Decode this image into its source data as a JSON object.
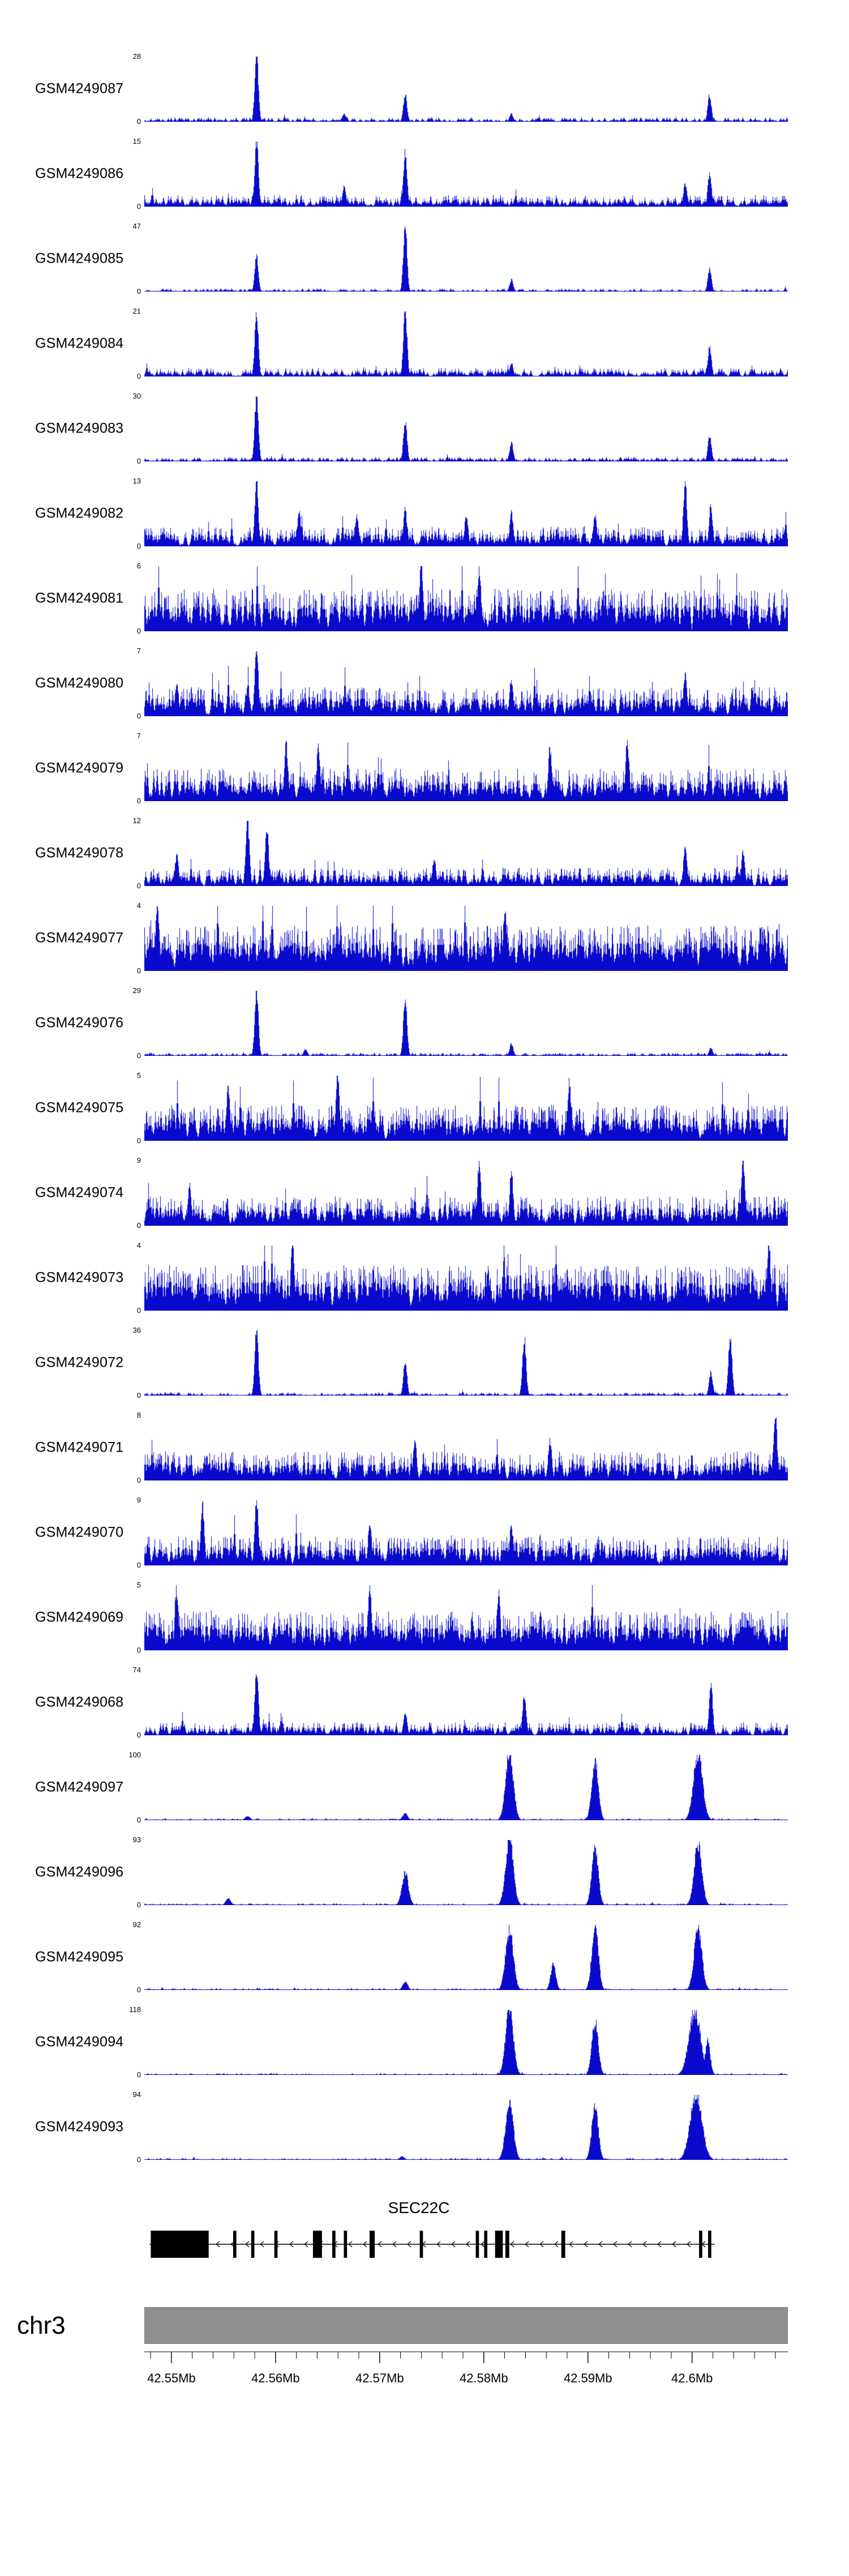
{
  "page": {
    "background": "#ffffff"
  },
  "chart_data": {
    "type": "area",
    "subtype": "genome-browser-signal-tracks",
    "title": "",
    "signal_color": "#0a0acc",
    "region": {
      "chrom": "chr3",
      "start_mb": 42.5474,
      "end_mb": 42.6092
    },
    "x_axis": {
      "region_start_mb": 42.5474,
      "region_end_mb": 42.6092,
      "minor_start_mb": 42.548,
      "minor_step_mb": 0.002,
      "minor_count": 31,
      "major": [
        {
          "mb": 42.55,
          "label": "42.55Mb"
        },
        {
          "mb": 42.56,
          "label": "42.56Mb"
        },
        {
          "mb": 42.57,
          "label": "42.57Mb"
        },
        {
          "mb": 42.58,
          "label": "42.58Mb"
        },
        {
          "mb": 42.59,
          "label": "42.59Mb"
        },
        {
          "mb": 42.6,
          "label": "42.6Mb"
        }
      ]
    },
    "tracks": [
      {
        "label": "GSM4249087",
        "ymax": 28,
        "ylim": [
          0,
          28
        ],
        "density": 0.7,
        "amp": 0.07,
        "pow": 2.5,
        "peaks": [
          [
            0.174,
            1.0
          ],
          [
            0.405,
            0.42
          ],
          [
            0.31,
            0.12
          ],
          [
            0.57,
            0.12
          ],
          [
            0.878,
            0.4
          ]
        ]
      },
      {
        "label": "GSM4249086",
        "ymax": 15,
        "ylim": [
          0,
          15
        ],
        "density": 0.85,
        "amp": 0.18,
        "pow": 2.0,
        "peaks": [
          [
            0.174,
            1.0
          ],
          [
            0.405,
            0.8
          ],
          [
            0.31,
            0.3
          ],
          [
            0.84,
            0.35
          ],
          [
            0.878,
            0.5
          ]
        ]
      },
      {
        "label": "GSM4249085",
        "ymax": 47,
        "ylim": [
          0,
          47
        ],
        "density": 0.6,
        "amp": 0.05,
        "pow": 2.5,
        "peaks": [
          [
            0.174,
            0.52
          ],
          [
            0.405,
            1.0
          ],
          [
            0.57,
            0.18
          ],
          [
            0.878,
            0.33
          ]
        ]
      },
      {
        "label": "GSM4249084",
        "ymax": 21,
        "ylim": [
          0,
          21
        ],
        "density": 0.8,
        "amp": 0.13,
        "pow": 2.2,
        "peaks": [
          [
            0.174,
            0.95
          ],
          [
            0.405,
            1.0
          ],
          [
            0.57,
            0.2
          ],
          [
            0.878,
            0.45
          ]
        ]
      },
      {
        "label": "GSM4249083",
        "ymax": 30,
        "ylim": [
          0,
          30
        ],
        "density": 0.7,
        "amp": 0.07,
        "pow": 2.5,
        "peaks": [
          [
            0.174,
            1.0
          ],
          [
            0.405,
            0.6
          ],
          [
            0.57,
            0.28
          ],
          [
            0.878,
            0.38
          ]
        ]
      },
      {
        "label": "GSM4249082",
        "ymax": 13,
        "ylim": [
          0,
          13
        ],
        "density": 0.9,
        "amp": 0.3,
        "pow": 2.0,
        "peaks": [
          [
            0.174,
            0.95
          ],
          [
            0.24,
            0.5
          ],
          [
            0.33,
            0.45
          ],
          [
            0.405,
            0.55
          ],
          [
            0.5,
            0.45
          ],
          [
            0.57,
            0.5
          ],
          [
            0.7,
            0.45
          ],
          [
            0.84,
            0.95
          ],
          [
            0.88,
            0.6
          ]
        ]
      },
      {
        "label": "GSM4249081",
        "ymax": 6,
        "ylim": [
          0,
          6
        ],
        "density": 0.95,
        "amp": 0.65,
        "pow": 1.6,
        "peaks": [
          [
            0.43,
            1.0
          ],
          [
            0.52,
            0.9
          ]
        ]
      },
      {
        "label": "GSM4249080",
        "ymax": 7,
        "ylim": [
          0,
          7
        ],
        "density": 0.92,
        "amp": 0.45,
        "pow": 1.8,
        "peaks": [
          [
            0.05,
            0.5
          ],
          [
            0.174,
            1.0
          ],
          [
            0.57,
            0.55
          ],
          [
            0.84,
            0.6
          ]
        ]
      },
      {
        "label": "GSM4249079",
        "ymax": 7,
        "ylim": [
          0,
          7
        ],
        "density": 0.93,
        "amp": 0.5,
        "pow": 1.8,
        "peaks": [
          [
            0.22,
            0.85
          ],
          [
            0.27,
            0.8
          ],
          [
            0.63,
            0.8
          ],
          [
            0.75,
            0.9
          ]
        ]
      },
      {
        "label": "GSM4249078",
        "ymax": 12,
        "ylim": [
          0,
          12
        ],
        "density": 0.88,
        "amp": 0.28,
        "pow": 2.0,
        "peaks": [
          [
            0.05,
            0.45
          ],
          [
            0.16,
            1.0
          ],
          [
            0.19,
            0.85
          ],
          [
            0.45,
            0.4
          ],
          [
            0.84,
            0.55
          ],
          [
            0.93,
            0.5
          ]
        ]
      },
      {
        "label": "GSM4249077",
        "ymax": 4,
        "ylim": [
          0,
          4
        ],
        "density": 0.96,
        "amp": 0.7,
        "pow": 1.4,
        "peaks": [
          [
            0.02,
            1.0
          ],
          [
            0.56,
            0.95
          ]
        ]
      },
      {
        "label": "GSM4249076",
        "ymax": 29,
        "ylim": [
          0,
          29
        ],
        "density": 0.65,
        "amp": 0.05,
        "pow": 2.5,
        "peaks": [
          [
            0.174,
            1.0
          ],
          [
            0.25,
            0.1
          ],
          [
            0.405,
            0.9
          ],
          [
            0.57,
            0.18
          ],
          [
            0.88,
            0.12
          ]
        ]
      },
      {
        "label": "GSM4249075",
        "ymax": 5,
        "ylim": [
          0,
          5
        ],
        "density": 0.94,
        "amp": 0.55,
        "pow": 1.6,
        "peaks": [
          [
            0.13,
            0.8
          ],
          [
            0.3,
            1.0
          ],
          [
            0.66,
            0.85
          ]
        ]
      },
      {
        "label": "GSM4249074",
        "ymax": 9,
        "ylim": [
          0,
          9
        ],
        "density": 0.92,
        "amp": 0.45,
        "pow": 1.8,
        "peaks": [
          [
            0.07,
            0.6
          ],
          [
            0.52,
            0.95
          ],
          [
            0.57,
            0.8
          ],
          [
            0.93,
            0.95
          ]
        ]
      },
      {
        "label": "GSM4249073",
        "ymax": 4,
        "ylim": [
          0,
          4
        ],
        "density": 0.96,
        "amp": 0.7,
        "pow": 1.4,
        "peaks": [
          [
            0.23,
            1.0
          ],
          [
            0.97,
            1.0
          ]
        ]
      },
      {
        "label": "GSM4249072",
        "ymax": 36,
        "ylim": [
          0,
          36
        ],
        "density": 0.65,
        "amp": 0.05,
        "pow": 2.5,
        "peaks": [
          [
            0.174,
            1.0
          ],
          [
            0.405,
            0.5
          ],
          [
            0.59,
            0.85
          ],
          [
            0.88,
            0.35
          ],
          [
            0.91,
            0.9
          ]
        ]
      },
      {
        "label": "GSM4249071",
        "ymax": 8,
        "ylim": [
          0,
          8
        ],
        "density": 0.93,
        "amp": 0.45,
        "pow": 1.8,
        "peaks": [
          [
            0.42,
            0.6
          ],
          [
            0.63,
            0.6
          ],
          [
            0.98,
            1.0
          ]
        ]
      },
      {
        "label": "GSM4249070",
        "ymax": 9,
        "ylim": [
          0,
          9
        ],
        "density": 0.92,
        "amp": 0.45,
        "pow": 1.8,
        "peaks": [
          [
            0.09,
            0.9
          ],
          [
            0.174,
            1.0
          ],
          [
            0.35,
            0.65
          ],
          [
            0.57,
            0.6
          ]
        ]
      },
      {
        "label": "GSM4249069",
        "ymax": 5,
        "ylim": [
          0,
          5
        ],
        "density": 0.95,
        "amp": 0.6,
        "pow": 1.5,
        "peaks": [
          [
            0.05,
            0.9
          ],
          [
            0.35,
            0.9
          ],
          [
            0.55,
            0.85
          ]
        ]
      },
      {
        "label": "GSM4249068",
        "ymax": 74,
        "ylim": [
          0,
          74
        ],
        "density": 0.85,
        "amp": 0.2,
        "pow": 2.0,
        "peaks": [
          [
            0.174,
            1.0
          ],
          [
            0.405,
            0.35
          ],
          [
            0.59,
            0.6
          ],
          [
            0.88,
            0.75
          ]
        ]
      },
      {
        "label": "GSM4249097",
        "ymax": 100,
        "ylim": [
          0,
          100
        ],
        "density": 0.5,
        "amp": 0.03,
        "pow": 2.5,
        "peaks": [
          [
            0.16,
            0.06,
            0.004
          ],
          [
            0.405,
            0.1,
            0.004
          ],
          [
            0.567,
            1.0,
            0.006
          ],
          [
            0.7,
            0.92,
            0.005
          ],
          [
            0.86,
            1.0,
            0.007
          ]
        ]
      },
      {
        "label": "GSM4249096",
        "ymax": 93,
        "ylim": [
          0,
          93
        ],
        "density": 0.5,
        "amp": 0.03,
        "pow": 2.5,
        "peaks": [
          [
            0.13,
            0.1,
            0.004
          ],
          [
            0.405,
            0.48,
            0.005
          ],
          [
            0.567,
            1.0,
            0.006
          ],
          [
            0.7,
            0.85,
            0.005
          ],
          [
            0.86,
            0.9,
            0.006
          ]
        ]
      },
      {
        "label": "GSM4249095",
        "ymax": 92,
        "ylim": [
          0,
          92
        ],
        "density": 0.5,
        "amp": 0.03,
        "pow": 2.5,
        "peaks": [
          [
            0.405,
            0.12,
            0.004
          ],
          [
            0.567,
            0.9,
            0.006
          ],
          [
            0.635,
            0.38,
            0.004
          ],
          [
            0.7,
            1.0,
            0.005
          ],
          [
            0.86,
            0.92,
            0.006
          ]
        ]
      },
      {
        "label": "GSM4249094",
        "ymax": 118,
        "ylim": [
          0,
          118
        ],
        "density": 0.5,
        "amp": 0.03,
        "pow": 2.5,
        "peaks": [
          [
            0.567,
            1.0,
            0.006
          ],
          [
            0.7,
            0.8,
            0.005
          ],
          [
            0.855,
            0.95,
            0.009
          ],
          [
            0.875,
            0.5,
            0.004
          ]
        ]
      },
      {
        "label": "GSM4249093",
        "ymax": 94,
        "ylim": [
          0,
          94
        ],
        "density": 0.5,
        "amp": 0.03,
        "pow": 2.5,
        "peaks": [
          [
            0.4,
            0.05,
            0.004
          ],
          [
            0.567,
            0.85,
            0.006
          ],
          [
            0.7,
            0.8,
            0.005
          ],
          [
            0.857,
            1.0,
            0.009
          ]
        ]
      }
    ],
    "gene_track": {
      "name": "SEC22C",
      "strand": "-",
      "span": [
        0.008,
        0.886
      ],
      "exons": [
        [
          0.01,
          0.09,
          "tall"
        ],
        [
          0.138,
          0.005,
          "tall"
        ],
        [
          0.166,
          0.005,
          "tall"
        ],
        [
          0.202,
          0.005,
          "tall"
        ],
        [
          0.262,
          0.014,
          "tall"
        ],
        [
          0.292,
          0.005,
          "tall"
        ],
        [
          0.31,
          0.005,
          "tall"
        ],
        [
          0.35,
          0.008,
          "tall"
        ],
        [
          0.428,
          0.005,
          "tall"
        ],
        [
          0.515,
          0.005,
          "tall"
        ],
        [
          0.528,
          0.005,
          "tall"
        ],
        [
          0.545,
          0.012,
          "tall"
        ],
        [
          0.561,
          0.006,
          "tall"
        ],
        [
          0.648,
          0.006,
          "tall"
        ],
        [
          0.862,
          0.005,
          "tall"
        ],
        [
          0.876,
          0.005,
          "tall"
        ]
      ]
    },
    "ideogram": {
      "chrom": "chr3",
      "color": "#8f8f8f"
    }
  }
}
